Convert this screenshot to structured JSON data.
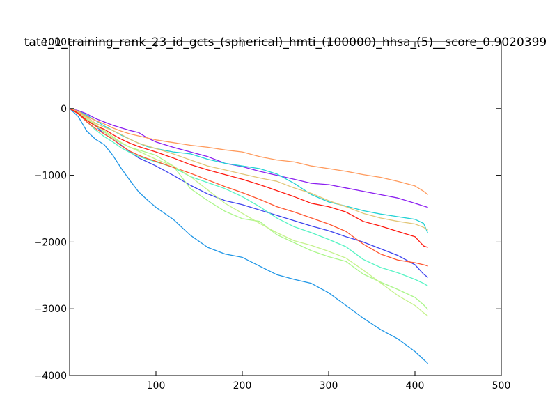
{
  "chart_data": {
    "type": "line",
    "title": "tate_1_training_rank_23_id_gcts_(spherical)_hmti_(100000)_hhsa_(5)__score_0.9020399",
    "xlabel": "",
    "ylabel": "",
    "xlim": [
      0,
      500
    ],
    "ylim": [
      -4000,
      1000
    ],
    "x_ticks": [
      100,
      200,
      300,
      400,
      500
    ],
    "x_tick_labels": [
      "100",
      "200",
      "300",
      "400",
      "500"
    ],
    "y_ticks": [
      1000,
      0,
      -1000,
      -2000,
      -3000,
      -4000
    ],
    "y_tick_labels": [
      "1000",
      "0",
      "−1000",
      "−2000",
      "−3000",
      "−4000"
    ],
    "grid": false,
    "legend": "none",
    "series": [
      {
        "color": "#8b1ef0",
        "x": [
          0,
          10,
          20,
          30,
          40,
          50,
          60,
          70,
          80,
          90,
          100,
          120,
          140,
          160,
          180,
          200,
          220,
          240,
          260,
          280,
          300,
          320,
          340,
          360,
          380,
          400,
          410,
          415
        ],
        "y": [
          0,
          -30,
          -80,
          -150,
          -200,
          -250,
          -290,
          -330,
          -360,
          -440,
          -500,
          -580,
          -650,
          -720,
          -820,
          -870,
          -940,
          -1000,
          -1060,
          -1120,
          -1140,
          -1190,
          -1240,
          -1290,
          -1340,
          -1420,
          -1460,
          -1480
        ]
      },
      {
        "color": "#3f44ee",
        "x": [
          0,
          10,
          20,
          30,
          40,
          50,
          60,
          70,
          80,
          90,
          100,
          120,
          140,
          160,
          180,
          200,
          220,
          240,
          260,
          280,
          300,
          320,
          340,
          360,
          380,
          400,
          410,
          415
        ],
        "y": [
          0,
          -60,
          -150,
          -260,
          -380,
          -460,
          -550,
          -650,
          -740,
          -800,
          -860,
          -1000,
          -1150,
          -1280,
          -1380,
          -1440,
          -1520,
          -1600,
          -1680,
          -1760,
          -1830,
          -1920,
          -2000,
          -2100,
          -2200,
          -2340,
          -2480,
          -2530
        ]
      },
      {
        "color": "#1f96e6",
        "x": [
          0,
          10,
          20,
          30,
          40,
          50,
          60,
          70,
          80,
          90,
          100,
          120,
          140,
          160,
          180,
          200,
          220,
          240,
          260,
          280,
          300,
          320,
          340,
          360,
          380,
          400,
          410,
          415
        ],
        "y": [
          0,
          -120,
          -340,
          -460,
          -540,
          -700,
          -900,
          -1080,
          -1250,
          -1370,
          -1480,
          -1660,
          -1900,
          -2080,
          -2180,
          -2230,
          -2360,
          -2490,
          -2560,
          -2620,
          -2760,
          -2950,
          -3140,
          -3310,
          -3450,
          -3640,
          -3760,
          -3820
        ]
      },
      {
        "color": "#22d2d4",
        "x": [
          0,
          10,
          20,
          30,
          40,
          50,
          60,
          70,
          80,
          90,
          100,
          120,
          140,
          160,
          180,
          200,
          220,
          240,
          260,
          280,
          300,
          320,
          340,
          360,
          380,
          400,
          410,
          415
        ],
        "y": [
          0,
          -40,
          -100,
          -180,
          -260,
          -330,
          -400,
          -460,
          -520,
          -570,
          -600,
          -650,
          -680,
          -760,
          -820,
          -860,
          -900,
          -980,
          -1120,
          -1290,
          -1400,
          -1460,
          -1530,
          -1580,
          -1620,
          -1660,
          -1720,
          -1870
        ]
      },
      {
        "color": "#56f4c4",
        "x": [
          0,
          10,
          20,
          30,
          40,
          50,
          60,
          70,
          80,
          90,
          100,
          120,
          140,
          160,
          180,
          200,
          220,
          240,
          260,
          280,
          300,
          320,
          340,
          360,
          380,
          400,
          410,
          415
        ],
        "y": [
          0,
          -80,
          -200,
          -320,
          -420,
          -500,
          -590,
          -660,
          -720,
          -760,
          -800,
          -880,
          -1020,
          -1110,
          -1200,
          -1320,
          -1470,
          -1640,
          -1770,
          -1860,
          -1960,
          -2070,
          -2260,
          -2380,
          -2460,
          -2560,
          -2620,
          -2660
        ]
      },
      {
        "color": "#abf68a",
        "x": [
          0,
          10,
          20,
          30,
          40,
          50,
          60,
          70,
          80,
          90,
          100,
          120,
          140,
          160,
          180,
          200,
          220,
          240,
          260,
          280,
          300,
          320,
          340,
          360,
          380,
          400,
          410,
          415
        ],
        "y": [
          0,
          -60,
          -160,
          -260,
          -350,
          -440,
          -520,
          -580,
          -620,
          -660,
          -700,
          -860,
          -1200,
          -1380,
          -1540,
          -1650,
          -1690,
          -1890,
          -2010,
          -2130,
          -2220,
          -2290,
          -2480,
          -2600,
          -2710,
          -2830,
          -2940,
          -3010
        ]
      },
      {
        "color": "#e2c678",
        "x": [
          0,
          10,
          20,
          30,
          40,
          50,
          60,
          70,
          80,
          90,
          100,
          120,
          140,
          160,
          180,
          200,
          220,
          240,
          260,
          280,
          300,
          320,
          340,
          360,
          380,
          400,
          410,
          415
        ],
        "y": [
          0,
          -50,
          -130,
          -220,
          -280,
          -330,
          -390,
          -460,
          -520,
          -560,
          -600,
          -680,
          -770,
          -860,
          -920,
          -980,
          -1040,
          -1090,
          -1190,
          -1270,
          -1380,
          -1470,
          -1570,
          -1640,
          -1690,
          -1730,
          -1780,
          -1820
        ]
      },
      {
        "color": "#ff9a5c",
        "x": [
          0,
          10,
          20,
          30,
          40,
          50,
          60,
          70,
          80,
          90,
          100,
          120,
          140,
          160,
          180,
          200,
          220,
          240,
          260,
          280,
          300,
          320,
          340,
          360,
          380,
          400,
          410,
          415
        ],
        "y": [
          0,
          -40,
          -120,
          -180,
          -230,
          -290,
          -340,
          -380,
          -410,
          -440,
          -470,
          -510,
          -550,
          -580,
          -620,
          -650,
          -720,
          -770,
          -800,
          -860,
          -900,
          -940,
          -990,
          -1030,
          -1090,
          -1160,
          -1240,
          -1290
        ]
      },
      {
        "color": "#ff5630",
        "x": [
          0,
          10,
          20,
          30,
          40,
          50,
          60,
          70,
          80,
          90,
          100,
          120,
          140,
          160,
          180,
          200,
          220,
          240,
          260,
          280,
          300,
          320,
          340,
          360,
          380,
          400,
          410,
          415
        ],
        "y": [
          0,
          -80,
          -200,
          -300,
          -380,
          -460,
          -560,
          -640,
          -700,
          -750,
          -790,
          -880,
          -970,
          -1070,
          -1170,
          -1260,
          -1360,
          -1470,
          -1550,
          -1640,
          -1730,
          -1840,
          -2030,
          -2180,
          -2270,
          -2310,
          -2340,
          -2360
        ]
      },
      {
        "color": "#c5f28c",
        "x": [
          0,
          10,
          20,
          30,
          40,
          50,
          60,
          70,
          80,
          90,
          100,
          120,
          140,
          160,
          180,
          200,
          220,
          240,
          260,
          280,
          300,
          320,
          340,
          360,
          380,
          400,
          410,
          415
        ],
        "y": [
          0,
          -60,
          -150,
          -240,
          -330,
          -420,
          -510,
          -580,
          -640,
          -700,
          -760,
          -860,
          -1020,
          -1220,
          -1420,
          -1570,
          -1720,
          -1860,
          -1980,
          -2050,
          -2140,
          -2240,
          -2420,
          -2610,
          -2800,
          -2950,
          -3060,
          -3110
        ]
      },
      {
        "color": "#ff1a10",
        "x": [
          0,
          10,
          20,
          30,
          40,
          50,
          60,
          70,
          80,
          90,
          100,
          120,
          140,
          160,
          180,
          200,
          220,
          240,
          260,
          280,
          300,
          320,
          340,
          360,
          380,
          400,
          410,
          415
        ],
        "y": [
          0,
          -70,
          -180,
          -260,
          -310,
          -390,
          -460,
          -520,
          -570,
          -610,
          -650,
          -740,
          -840,
          -920,
          -990,
          -1060,
          -1140,
          -1230,
          -1320,
          -1420,
          -1470,
          -1550,
          -1690,
          -1760,
          -1840,
          -1920,
          -2060,
          -2080
        ]
      }
    ]
  }
}
